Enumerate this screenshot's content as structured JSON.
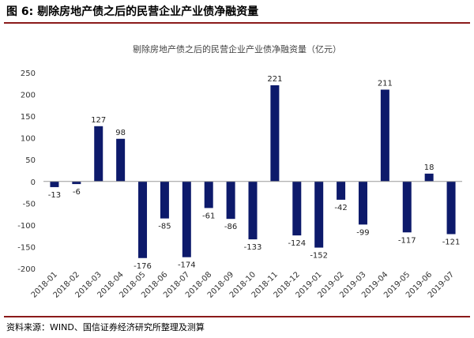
{
  "figure": {
    "number_label": "图 6:",
    "title": "剔除房地产债之后的民营企业产业债净融资量",
    "source": "资料来源：WIND、国信证券经济研究所整理及测算"
  },
  "colors": {
    "bar": "#0d1a6b",
    "rule": "#8b1a1a",
    "axis": "#999999"
  },
  "chart_data": {
    "type": "bar",
    "title": "剔除房地产债之后的民营企业产业债净融资量（亿元）",
    "xlabel": "",
    "ylabel": "",
    "ylim": [
      -200,
      250
    ],
    "yticks": [
      -200,
      -150,
      -100,
      -50,
      0,
      50,
      100,
      150,
      200,
      250
    ],
    "categories": [
      "2018-01",
      "2018-02",
      "2018-03",
      "2018-04",
      "2018-05",
      "2018-06",
      "2018-07",
      "2018-08",
      "2018-09",
      "2018-10",
      "2018-11",
      "2018-12",
      "2019-01",
      "2019-02",
      "2019-03",
      "2019-04",
      "2019-05",
      "2019-06",
      "2019-07"
    ],
    "values": [
      -13,
      -6,
      127,
      98,
      -176,
      -85,
      -174,
      -61,
      -86,
      -133,
      221,
      -124,
      -152,
      -42,
      -99,
      211,
      -117,
      18,
      -121
    ],
    "grid": false,
    "legend": "none"
  }
}
